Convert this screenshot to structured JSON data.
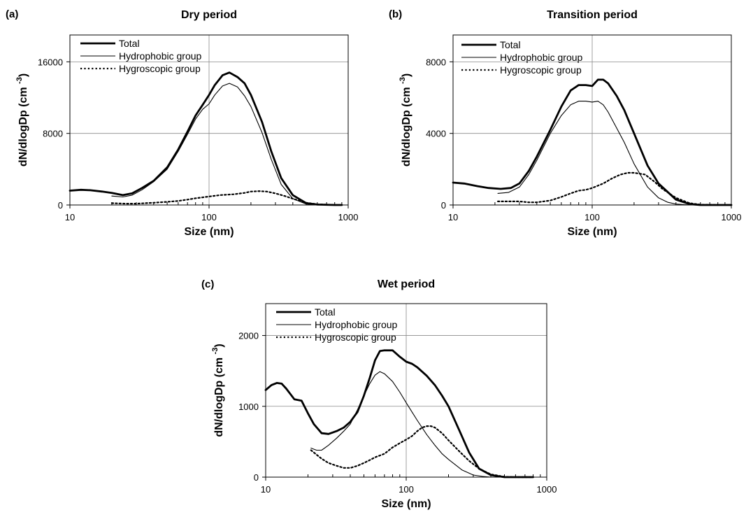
{
  "chart_data": [
    {
      "type": "line",
      "panel_label": "(a)",
      "title": "Dry period",
      "xlabel": "Size (nm)",
      "ylabel": "dN/dlogDp (cm",
      "ylabel_sup": "-3",
      "ylabel_close": ")",
      "x_scale": "log",
      "xlim": [
        10,
        1000
      ],
      "ylim": [
        0,
        19000
      ],
      "x_ticks": [
        10,
        100,
        1000
      ],
      "x_tick_labels": [
        "10",
        "100",
        "1000"
      ],
      "y_ticks": [
        0,
        8000,
        16000
      ],
      "y_tick_labels": [
        "0",
        "8000",
        "16000"
      ],
      "legend_position": "top-left",
      "colors": {
        "Total": "#000000",
        "Hydrophobic group": "#000000",
        "Hygroscopic group": "#000000"
      },
      "series": [
        {
          "name": "Total",
          "style": "thick",
          "x": [
            10,
            12,
            14,
            17,
            20,
            24,
            28,
            33,
            40,
            50,
            60,
            70,
            80,
            90,
            100,
            110,
            125,
            140,
            160,
            180,
            200,
            240,
            280,
            330,
            400,
            500,
            600,
            800,
            900
          ],
          "y": [
            1600,
            1700,
            1650,
            1500,
            1350,
            1100,
            1300,
            1900,
            2700,
            4200,
            6200,
            8200,
            10000,
            11200,
            12300,
            13400,
            14500,
            14800,
            14300,
            13600,
            12300,
            9300,
            6000,
            3000,
            1100,
            200,
            50,
            0,
            0
          ]
        },
        {
          "name": "Hydrophobic group",
          "style": "thin",
          "x": [
            20,
            24,
            28,
            33,
            40,
            50,
            60,
            70,
            80,
            90,
            100,
            110,
            125,
            140,
            160,
            180,
            200,
            240,
            280,
            330,
            400,
            500,
            600,
            800,
            900
          ],
          "y": [
            1000,
            900,
            1100,
            1700,
            2600,
            4000,
            6000,
            7900,
            9600,
            10700,
            11300,
            12300,
            13300,
            13600,
            13200,
            12200,
            11000,
            8100,
            5100,
            2300,
            700,
            100,
            0,
            0,
            0
          ]
        },
        {
          "name": "Hygroscopic group",
          "style": "dotted",
          "x": [
            20,
            25,
            30,
            40,
            50,
            60,
            70,
            80,
            90,
            100,
            120,
            150,
            180,
            200,
            230,
            260,
            300,
            350,
            400,
            500,
            600,
            800
          ],
          "y": [
            200,
            150,
            150,
            250,
            350,
            450,
            600,
            750,
            850,
            950,
            1100,
            1200,
            1350,
            1500,
            1550,
            1500,
            1300,
            1000,
            700,
            250,
            80,
            0
          ]
        }
      ]
    },
    {
      "type": "line",
      "panel_label": "(b)",
      "title": "Transition period",
      "xlabel": "Size (nm)",
      "ylabel": "dN/dlogDp (cm",
      "ylabel_sup": "-3",
      "ylabel_close": ")",
      "x_scale": "log",
      "xlim": [
        10,
        1000
      ],
      "ylim": [
        0,
        9500
      ],
      "x_ticks": [
        10,
        100,
        1000
      ],
      "x_tick_labels": [
        "10",
        "100",
        "1000"
      ],
      "y_ticks": [
        0,
        4000,
        8000
      ],
      "y_tick_labels": [
        "0",
        "4000",
        "8000"
      ],
      "legend_position": "top-left",
      "colors": {
        "Total": "#000000",
        "Hydrophobic group": "#000000",
        "Hygroscopic group": "#000000"
      },
      "series": [
        {
          "name": "Total",
          "style": "thick",
          "x": [
            10,
            12,
            15,
            18,
            22,
            26,
            30,
            35,
            40,
            50,
            60,
            70,
            80,
            90,
            100,
            110,
            120,
            130,
            150,
            170,
            200,
            250,
            300,
            400,
            500,
            600,
            800,
            1000
          ],
          "y": [
            1250,
            1200,
            1050,
            950,
            900,
            950,
            1200,
            1900,
            2700,
            4200,
            5500,
            6400,
            6700,
            6700,
            6650,
            7000,
            7000,
            6800,
            6100,
            5300,
            4000,
            2200,
            1200,
            300,
            50,
            0,
            0,
            0
          ]
        },
        {
          "name": "Hydrophobic group",
          "style": "thin",
          "x": [
            21,
            25,
            30,
            35,
            40,
            50,
            60,
            70,
            80,
            90,
            100,
            110,
            120,
            130,
            150,
            170,
            200,
            250,
            300,
            350,
            400,
            500,
            600,
            800
          ],
          "y": [
            650,
            700,
            1000,
            1700,
            2500,
            4000,
            5000,
            5600,
            5800,
            5800,
            5750,
            5800,
            5600,
            5200,
            4300,
            3500,
            2300,
            1000,
            400,
            150,
            50,
            0,
            0,
            0
          ]
        },
        {
          "name": "Hygroscopic group",
          "style": "dotted",
          "x": [
            21,
            30,
            35,
            40,
            50,
            60,
            70,
            80,
            90,
            100,
            120,
            140,
            160,
            180,
            200,
            240,
            280,
            320,
            400,
            500,
            600,
            800
          ],
          "y": [
            200,
            200,
            150,
            150,
            250,
            450,
            650,
            800,
            850,
            950,
            1200,
            1500,
            1700,
            1800,
            1800,
            1700,
            1300,
            900,
            400,
            100,
            20,
            0
          ]
        }
      ]
    },
    {
      "type": "line",
      "panel_label": "(c)",
      "title": "Wet period",
      "xlabel": "Size (nm)",
      "ylabel": "dN/dlogDp (cm",
      "ylabel_sup": "-3",
      "ylabel_close": ")",
      "x_scale": "log",
      "xlim": [
        10,
        1000
      ],
      "ylim": [
        0,
        2450
      ],
      "x_ticks": [
        10,
        100,
        1000
      ],
      "x_tick_labels": [
        "10",
        "100",
        "1000"
      ],
      "y_ticks": [
        0,
        1000,
        2000
      ],
      "y_tick_labels": [
        "0",
        "1000",
        "2000"
      ],
      "legend_position": "top-center",
      "colors": {
        "Total": "#000000",
        "Hydrophobic group": "#000000",
        "Hygroscopic group": "#000000"
      },
      "series": [
        {
          "name": "Total",
          "style": "thick",
          "x": [
            10,
            11,
            12,
            13,
            14,
            16,
            18,
            20,
            22,
            25,
            28,
            32,
            36,
            40,
            45,
            50,
            55,
            60,
            65,
            70,
            80,
            90,
            100,
            110,
            120,
            140,
            160,
            180,
            200,
            240,
            280,
            330,
            400,
            500,
            600,
            800
          ],
          "y": [
            1230,
            1300,
            1330,
            1320,
            1250,
            1100,
            1080,
            900,
            750,
            620,
            610,
            650,
            700,
            780,
            920,
            1150,
            1400,
            1650,
            1780,
            1790,
            1790,
            1700,
            1630,
            1600,
            1550,
            1430,
            1300,
            1150,
            1000,
            650,
            350,
            120,
            30,
            0,
            0,
            0
          ]
        },
        {
          "name": "Hydrophobic group",
          "style": "thin",
          "x": [
            21,
            23,
            25,
            28,
            32,
            36,
            40,
            45,
            50,
            55,
            60,
            65,
            70,
            80,
            90,
            100,
            110,
            120,
            140,
            160,
            180,
            200,
            250,
            300,
            350,
            400,
            500,
            600,
            800
          ],
          "y": [
            410,
            380,
            380,
            450,
            550,
            650,
            750,
            950,
            1150,
            1320,
            1440,
            1490,
            1460,
            1350,
            1200,
            1050,
            920,
            800,
            600,
            450,
            330,
            250,
            100,
            30,
            10,
            0,
            0,
            0,
            0
          ]
        },
        {
          "name": "Hygroscopic group",
          "style": "dotted",
          "x": [
            21,
            25,
            28,
            32,
            36,
            40,
            45,
            50,
            55,
            60,
            70,
            80,
            90,
            100,
            110,
            120,
            130,
            140,
            150,
            160,
            180,
            200,
            240,
            280,
            330,
            400,
            500,
            600,
            800
          ],
          "y": [
            380,
            260,
            200,
            160,
            130,
            130,
            160,
            200,
            240,
            280,
            330,
            420,
            480,
            530,
            580,
            650,
            700,
            720,
            720,
            700,
            620,
            520,
            360,
            230,
            120,
            40,
            5,
            0,
            0
          ]
        }
      ]
    }
  ]
}
